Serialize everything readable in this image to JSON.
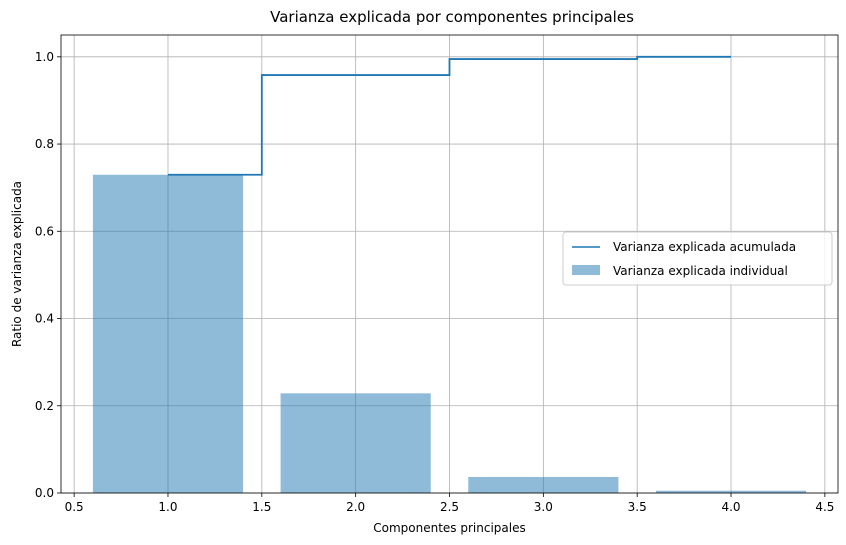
{
  "chart_data": {
    "type": "bar",
    "title": "Varianza explicada por componentes principales",
    "xlabel": "Componentes principales",
    "ylabel": "Ratio de varianza explicada",
    "xlim": [
      0.43,
      4.57
    ],
    "ylim": [
      0,
      1.05
    ],
    "x_ticks": [
      0.5,
      1.0,
      1.5,
      2.0,
      2.5,
      3.0,
      3.5,
      4.0,
      4.5
    ],
    "x_tick_labels": [
      "0.5",
      "1.0",
      "1.5",
      "2.0",
      "2.5",
      "3.0",
      "3.5",
      "4.0",
      "4.5"
    ],
    "y_ticks": [
      0.0,
      0.2,
      0.4,
      0.6,
      0.8,
      1.0
    ],
    "y_tick_labels": [
      "0.0",
      "0.2",
      "0.4",
      "0.6",
      "0.8",
      "1.0"
    ],
    "grid": true,
    "legend_position": "center-right",
    "bars": {
      "name": "Varianza explicada individual",
      "x": [
        1,
        2,
        3,
        4
      ],
      "values": [
        0.7296,
        0.2285,
        0.0367,
        0.0052
      ],
      "color": "#1f77b4",
      "alpha": 0.5
    },
    "step": {
      "name": "Varianza explicada acumulada",
      "x": [
        1,
        2,
        3,
        4
      ],
      "values": [
        0.7296,
        0.9581,
        0.9948,
        1.0
      ],
      "where": "mid",
      "color": "#1f77b4"
    }
  }
}
